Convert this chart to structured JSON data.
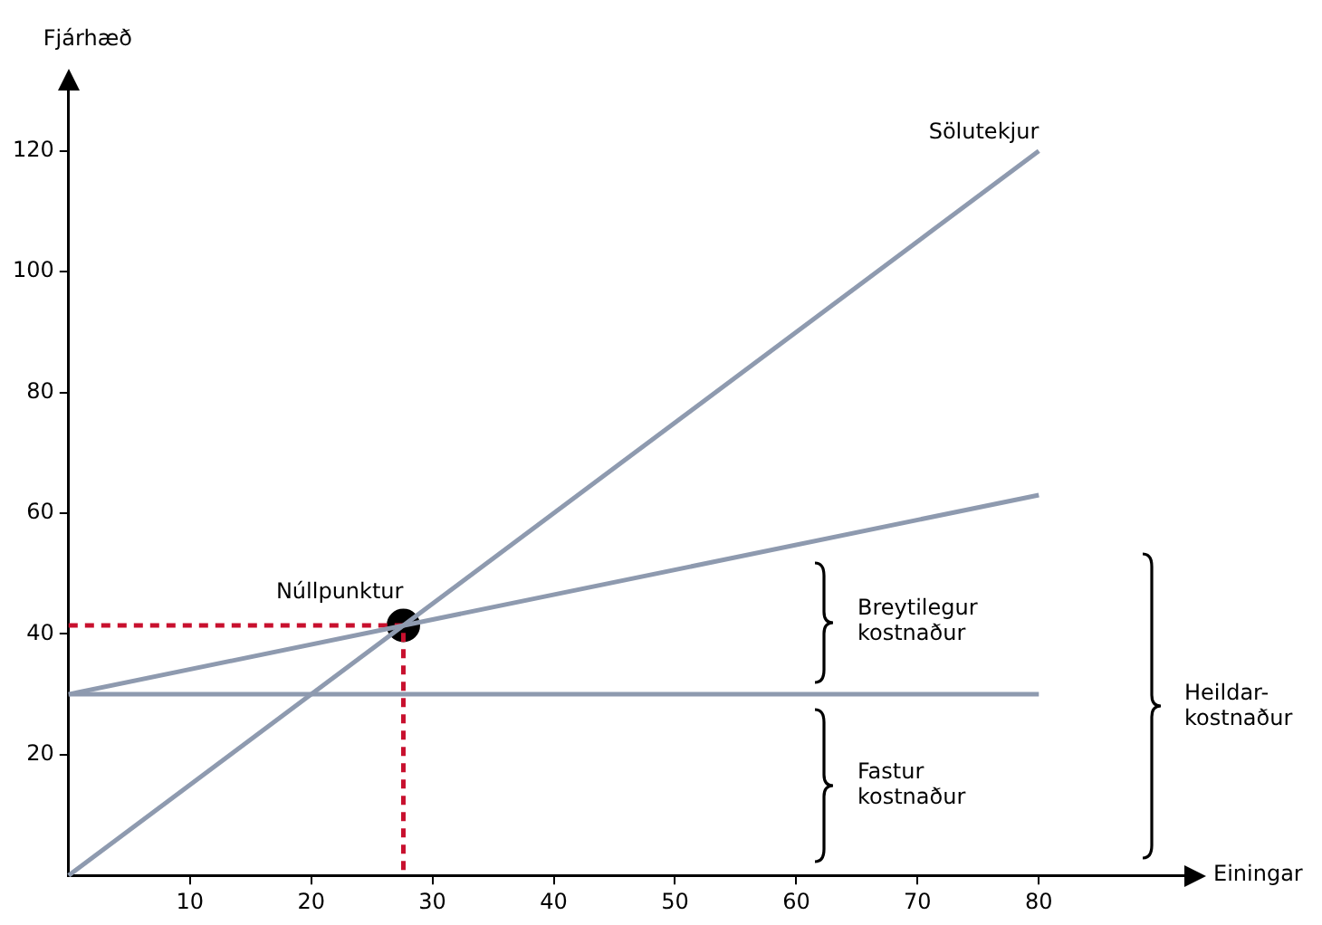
{
  "chart_data": {
    "type": "line",
    "xlabel": "Einingar",
    "ylabel": "Fjárhæð",
    "xlim": [
      0,
      92
    ],
    "ylim": [
      0,
      130
    ],
    "xticks": [
      10,
      20,
      30,
      40,
      50,
      60,
      70,
      80
    ],
    "yticks": [
      20,
      40,
      60,
      80,
      100,
      120
    ],
    "grid": false,
    "legend": false,
    "marker": "none",
    "series": [
      {
        "name": "Sölutekjur",
        "color": "#8e9aaf",
        "x": [
          0,
          80
        ],
        "values": [
          0,
          120
        ]
      },
      {
        "color": "#8e9aaf",
        "x": [
          0,
          80
        ],
        "values": [
          30,
          63
        ]
      },
      {
        "color": "#8e9aaf",
        "x": [
          0,
          80
        ],
        "values": [
          30,
          30
        ]
      },
      {
        "color": "#c8102e",
        "line_style": "dashed",
        "x": [
          0,
          27.6,
          27.6
        ],
        "values": [
          41.4,
          41.4,
          0
        ]
      },
      {
        "type": "scatter",
        "color": "#000000",
        "marker": "circle",
        "x": [
          27.6
        ],
        "values": [
          41.4
        ]
      }
    ],
    "annotations": [
      {
        "text": "Núllpunktur",
        "x": 27.6,
        "y": 41.4
      },
      "Breytilegur\nkostnaður",
      "Fastur\nkostnaður",
      "Heildar-\nkostnaður"
    ]
  }
}
